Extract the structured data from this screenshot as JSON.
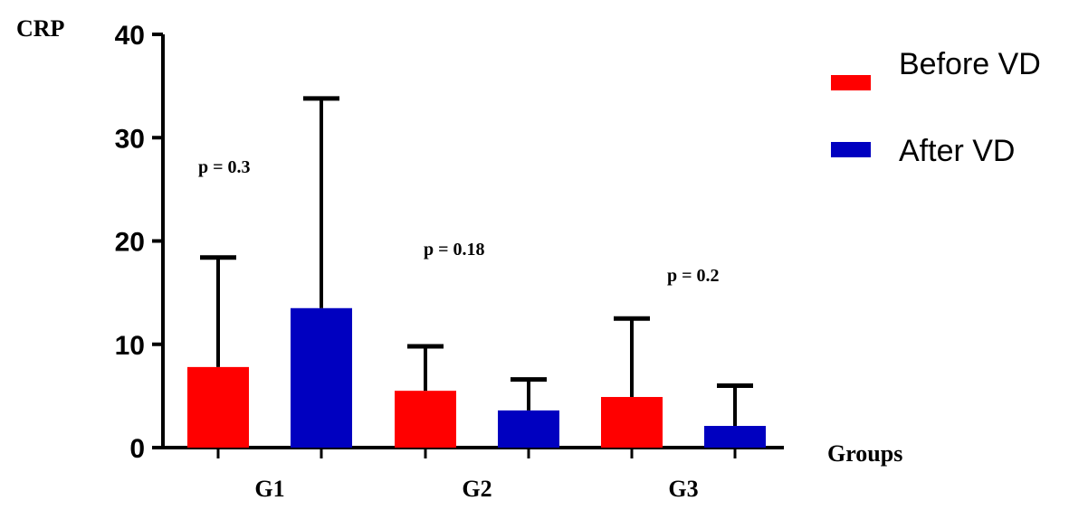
{
  "chart_data": {
    "type": "bar",
    "categories": [
      "G1",
      "G2",
      "G3"
    ],
    "series": [
      {
        "name": "Before VD",
        "color": "#ff0000",
        "values": [
          7.8,
          5.5,
          4.9
        ],
        "error_upper": [
          18.4,
          9.8,
          12.5
        ]
      },
      {
        "name": "After VD",
        "color": "#0000c0",
        "values": [
          13.5,
          3.6,
          2.1
        ],
        "error_upper": [
          33.8,
          6.6,
          6.0
        ]
      }
    ],
    "ylabel": "CRP",
    "xlabel": "Groups",
    "ylim": [
      0,
      40
    ],
    "yticks": [
      0,
      10,
      20,
      30,
      40
    ],
    "annotations": [
      "p = 0.3",
      "p = 0.18",
      "p = 0.2"
    ],
    "legend_position": "top-right",
    "grid": false
  }
}
